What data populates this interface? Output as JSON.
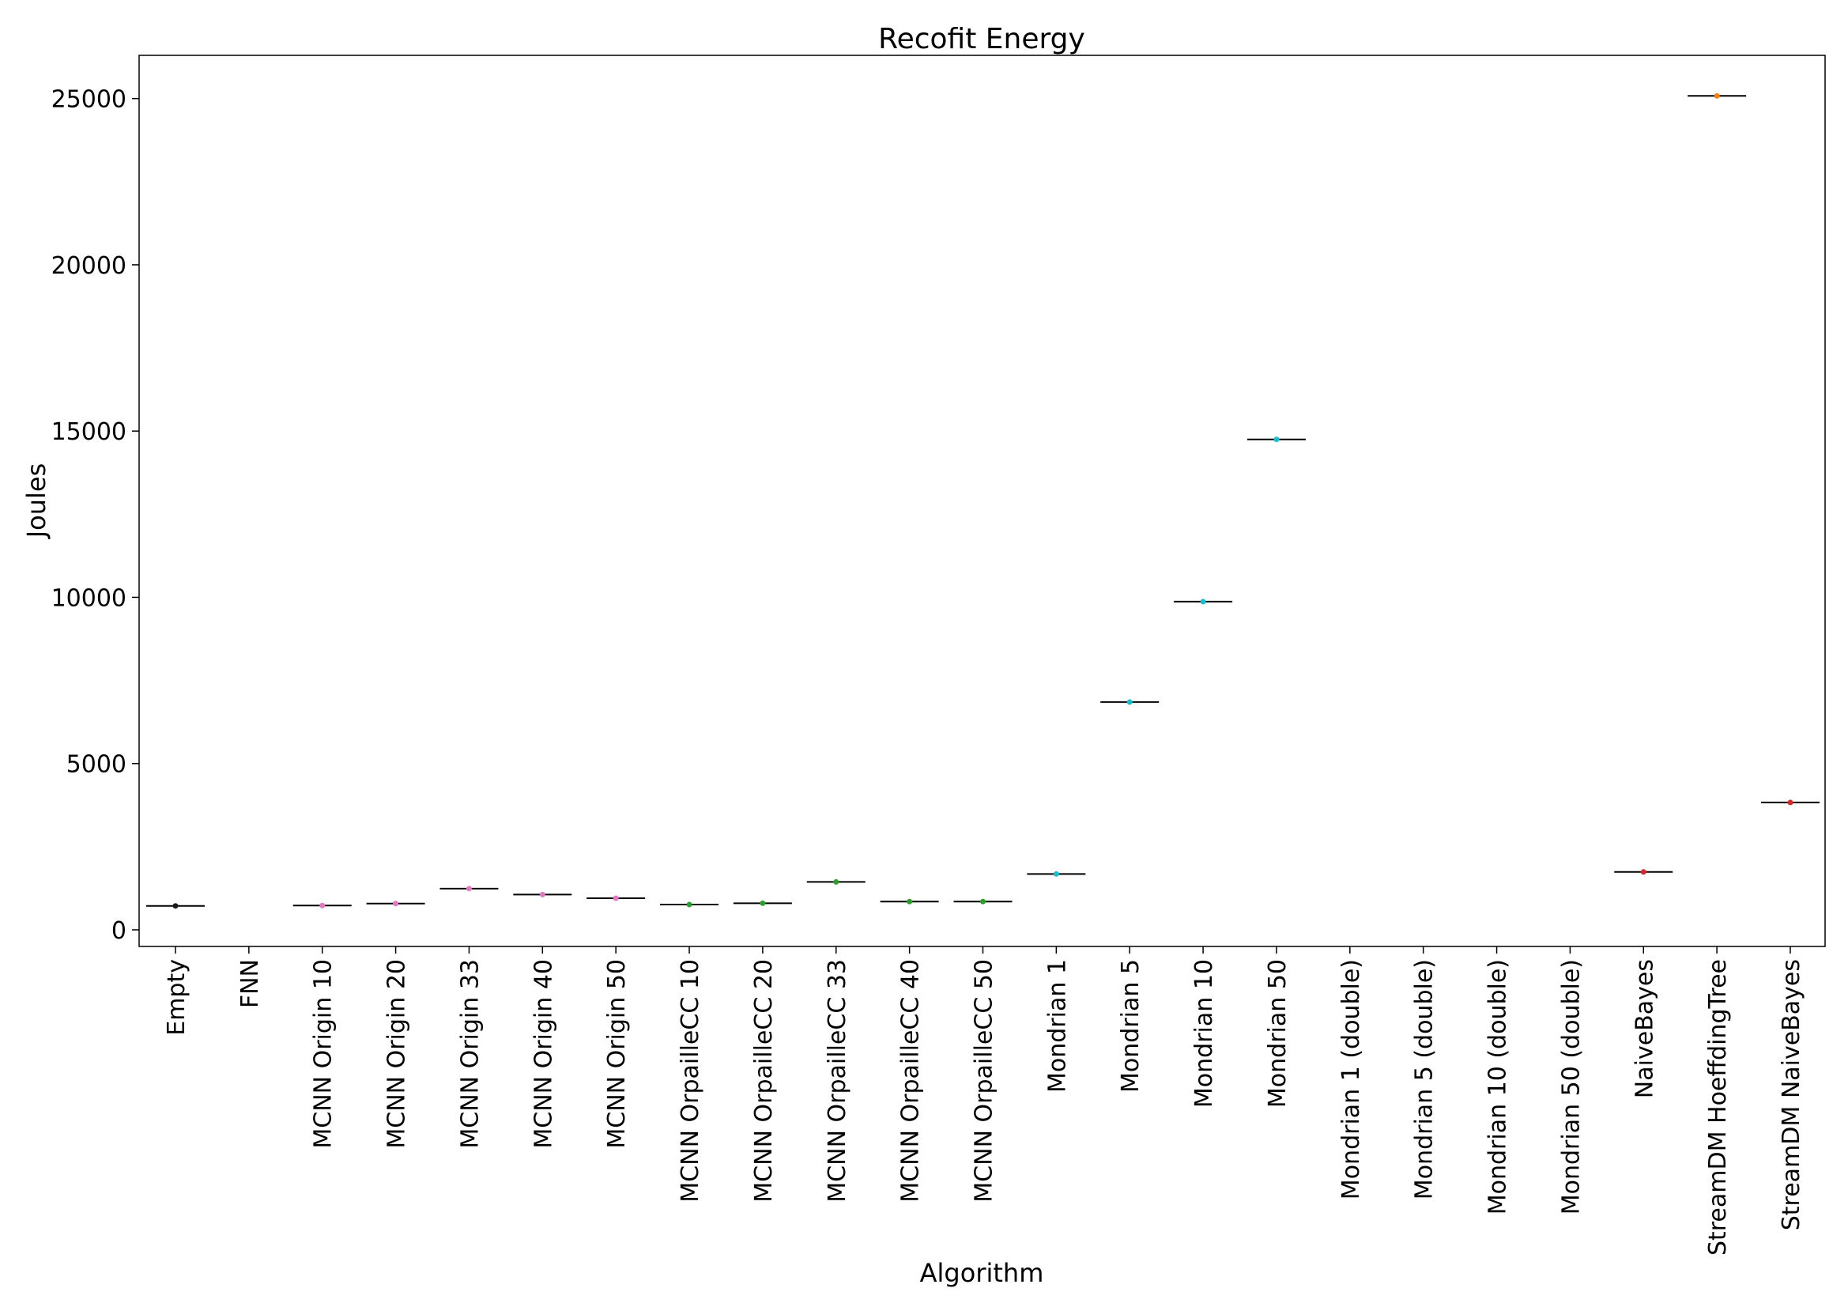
{
  "chart_data": {
    "type": "box",
    "title": "Recofit Energy",
    "xlabel": "Algorithm",
    "ylabel": "Joules",
    "ylim": [
      -500,
      26300
    ],
    "yticks": [
      0,
      5000,
      10000,
      15000,
      20000,
      25000
    ],
    "grid": false,
    "categories": [
      "Empty",
      "FNN",
      "MCNN Origin 10",
      "MCNN Origin 20",
      "MCNN Origin 33",
      "MCNN Origin 40",
      "MCNN Origin 50",
      "MCNN OrpailleCC 10",
      "MCNN OrpailleCC 20",
      "MCNN OrpailleCC 33",
      "MCNN OrpailleCC 40",
      "MCNN OrpailleCC 50",
      "Mondrian 1",
      "Mondrian 5",
      "Mondrian 10",
      "Mondrian 50",
      "Mondrian 1 (double)",
      "Mondrian 5 (double)",
      "Mondrian 10 (double)",
      "Mondrian 50 (double)",
      "NaiveBayes",
      "StreamDM HoeffdingTree",
      "StreamDM NaiveBayes"
    ],
    "values": [
      720,
      null,
      730,
      790,
      1240,
      1060,
      950,
      760,
      800,
      1440,
      850,
      850,
      1680,
      6850,
      9870,
      14750,
      null,
      null,
      null,
      null,
      1740,
      25080,
      3830
    ],
    "colors": [
      "#1a1a1a",
      "#cccccc",
      "#e377c2",
      "#e377c2",
      "#e377c2",
      "#e377c2",
      "#e377c2",
      "#2ca02c",
      "#2ca02c",
      "#2ca02c",
      "#2ca02c",
      "#2ca02c",
      "#17becf",
      "#17becf",
      "#17becf",
      "#17becf",
      "#9467bd",
      "#9467bd",
      "#9467bd",
      "#9467bd",
      "#d62728",
      "#ff7f0e",
      "#d62728"
    ]
  }
}
